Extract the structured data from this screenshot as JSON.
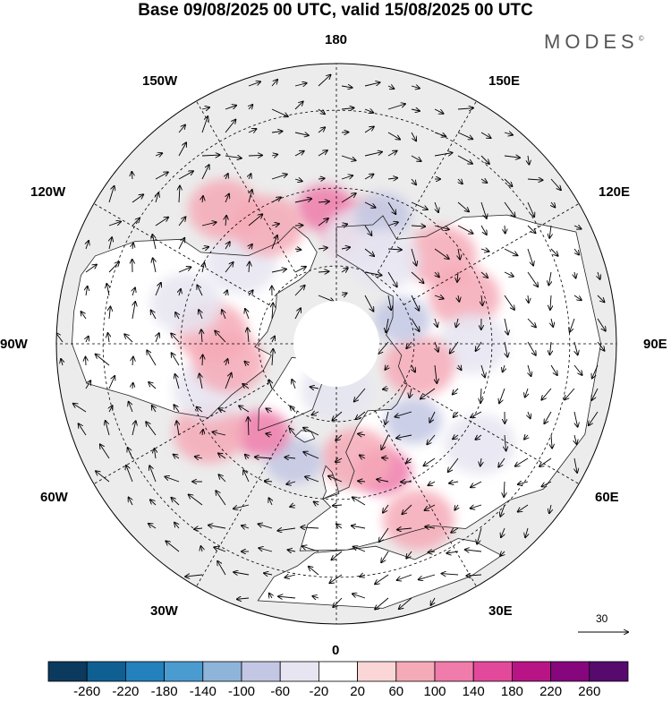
{
  "title": "Base 09/08/2025 00 UTC, valid 15/08/2025 00 UTC",
  "brand": "MODES",
  "brand_mark": "©",
  "longitude_labels": [
    "180",
    "150E",
    "120E",
    "90E",
    "60E",
    "30E",
    "0",
    "30W",
    "60W",
    "90W",
    "120W",
    "150W"
  ],
  "reference_vector": {
    "label": "30"
  },
  "colorbar": {
    "ticks": [
      "-260",
      "-220",
      "-180",
      "-140",
      "-100",
      "-60",
      "-20",
      "20",
      "60",
      "100",
      "140",
      "180",
      "220",
      "260"
    ],
    "colors": [
      "#0b3a5e",
      "#0f5f93",
      "#2381bd",
      "#4a9bd0",
      "#8fb4da",
      "#c3c7e3",
      "#e6e5f1",
      "#ffffff",
      "#fbd6d6",
      "#f5aab7",
      "#ef7cab",
      "#e2499b",
      "#b81486",
      "#86067d",
      "#560a6e"
    ]
  },
  "anomaly_blobs": [
    {
      "lon": 170,
      "lat": 60,
      "value": 60
    },
    {
      "lon": -175,
      "lat": 55,
      "value": 100
    },
    {
      "lon": 168,
      "lat": 62,
      "value": -60
    },
    {
      "lon": 160,
      "lat": 55,
      "value": -100
    },
    {
      "lon": 110,
      "lat": 55,
      "value": 60
    },
    {
      "lon": 130,
      "lat": 55,
      "value": 60
    },
    {
      "lon": 90,
      "lat": 55,
      "value": -60
    },
    {
      "lon": 75,
      "lat": 68,
      "value": 60
    },
    {
      "lon": 150,
      "lat": 65,
      "value": -60
    },
    {
      "lon": 110,
      "lat": 72,
      "value": -100
    },
    {
      "lon": 45,
      "lat": 62,
      "value": -100
    },
    {
      "lon": 55,
      "lat": 45,
      "value": -60
    },
    {
      "lon": 20,
      "lat": 55,
      "value": 100
    },
    {
      "lon": 10,
      "lat": 60,
      "value": 60
    },
    {
      "lon": 25,
      "lat": 40,
      "value": 60
    },
    {
      "lon": -20,
      "lat": 58,
      "value": -100
    },
    {
      "lon": -40,
      "lat": 60,
      "value": 100
    },
    {
      "lon": -55,
      "lat": 50,
      "value": 60
    },
    {
      "lon": -70,
      "lat": 55,
      "value": -60
    },
    {
      "lon": -80,
      "lat": 62,
      "value": 60
    },
    {
      "lon": -95,
      "lat": 58,
      "value": 60
    },
    {
      "lon": -105,
      "lat": 50,
      "value": -60
    },
    {
      "lon": -130,
      "lat": 58,
      "value": -60
    },
    {
      "lon": -150,
      "lat": 55,
      "value": 60
    },
    {
      "lon": -140,
      "lat": 45,
      "value": 60
    },
    {
      "lon": 0,
      "lat": 78,
      "value": -60
    }
  ]
}
